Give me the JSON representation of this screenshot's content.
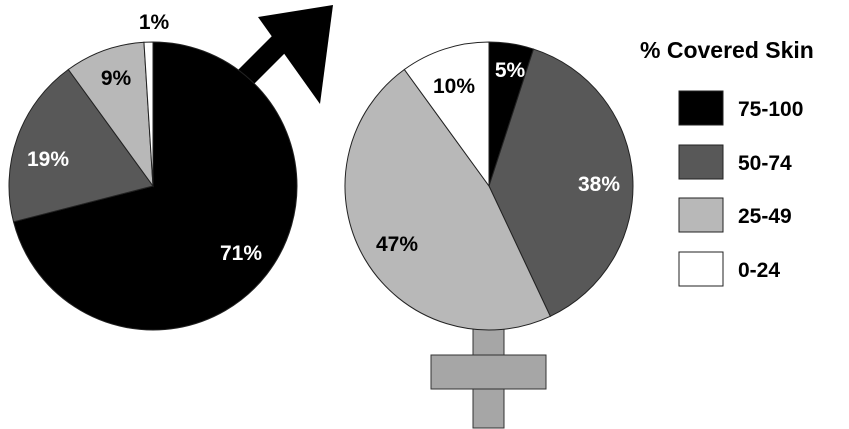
{
  "chart_data": [
    {
      "type": "pie",
      "name": "male",
      "categories": [
        "75-100",
        "50-74",
        "25-49",
        "0-24"
      ],
      "values": [
        71,
        19,
        9,
        1
      ],
      "labels": [
        "71%",
        "19%",
        "9%",
        "1%"
      ]
    },
    {
      "type": "pie",
      "name": "female",
      "categories": [
        "75-100",
        "50-74",
        "25-49",
        "0-24"
      ],
      "values": [
        5,
        38,
        47,
        10
      ],
      "labels": [
        "5%",
        "38%",
        "47%",
        "10%"
      ]
    }
  ],
  "legend": {
    "title": "% Covered Skin",
    "placement": "right",
    "items": [
      {
        "label": "75-100",
        "color": "#000000"
      },
      {
        "label": "50-74",
        "color": "#585858"
      },
      {
        "label": "25-49",
        "color": "#b8b8b8"
      },
      {
        "label": "0-24",
        "color": "#ffffff"
      }
    ]
  },
  "colors": {
    "label_on_dark": "#ffffff",
    "label_on_light": "#000000",
    "female_cross": "#a6a6a6",
    "male_arrow": "#000000"
  }
}
